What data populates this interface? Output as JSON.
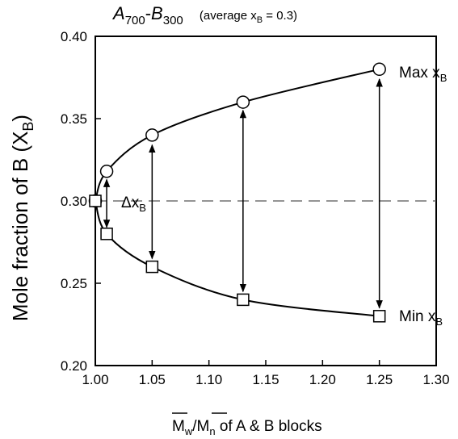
{
  "chart_data": {
    "type": "line",
    "title": {
      "main": "A",
      "main_sub1": "700",
      "dash": "-",
      "main2": "B",
      "main_sub2": "300",
      "note_pre": "(average x",
      "note_sub": "B",
      "note_post": " = 0.3)"
    },
    "xlabel": {
      "overline_1": "M",
      "sub_1": "w",
      "slash": "/",
      "overline_2": "M",
      "sub_2": "n",
      "rest": " of A & B blocks"
    },
    "ylabel": {
      "main": "Mole fraction of B (X",
      "sub": "B",
      "close": ")"
    },
    "xlim": [
      1.0,
      1.3
    ],
    "ylim": [
      0.2,
      0.4
    ],
    "x_ticks": [
      "1.00",
      "1.05",
      "1.10",
      "1.15",
      "1.20",
      "1.25",
      "1.30"
    ],
    "y_ticks": [
      "0.20",
      "0.25",
      "0.30",
      "0.35",
      "0.40"
    ],
    "reference_line": {
      "y": 0.3,
      "style": "dashed"
    },
    "series": [
      {
        "name": {
          "pre": "Max x",
          "sub": "B"
        },
        "marker": "circle",
        "x": [
          1.0,
          1.01,
          1.05,
          1.13,
          1.25
        ],
        "y": [
          0.3,
          0.318,
          0.34,
          0.36,
          0.38
        ]
      },
      {
        "name": {
          "pre": "Min x",
          "sub": "B"
        },
        "marker": "square",
        "x": [
          1.0,
          1.01,
          1.05,
          1.13,
          1.25
        ],
        "y": [
          0.3,
          0.28,
          0.26,
          0.24,
          0.23
        ]
      }
    ],
    "double_arrows": [
      {
        "x": 1.01,
        "y1": 0.284,
        "y2": 0.313
      },
      {
        "x": 1.05,
        "y1": 0.265,
        "y2": 0.334
      },
      {
        "x": 1.13,
        "y1": 0.245,
        "y2": 0.355
      },
      {
        "x": 1.25,
        "y1": 0.235,
        "y2": 0.374
      }
    ],
    "annotation": {
      "pre": "Δx",
      "sub": "B"
    },
    "grid": false
  }
}
